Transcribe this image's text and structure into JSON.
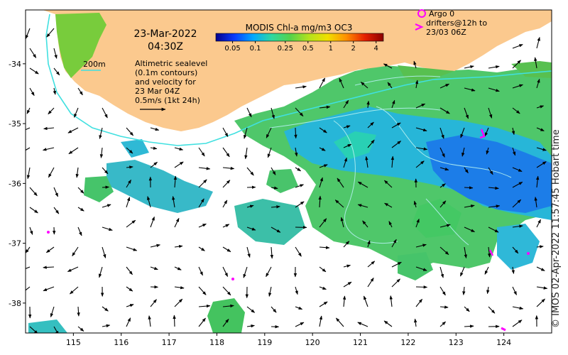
{
  "map": {
    "date": "23-Mar-2022",
    "time": "04:30Z",
    "isobath_label": "200m",
    "altimetry_note_lines": [
      "Altimetric sealevel",
      "(0.1m contours)",
      "and velocity for",
      "23 Mar 04Z",
      "0.5m/s (1kt 24h)"
    ],
    "colorbar": {
      "title": "MODIS Chl-a mg/m3 OC3",
      "tick_labels": [
        "0.05",
        "0.1",
        "0.25",
        "0.5",
        "1",
        "2",
        "4"
      ],
      "tick_values": [
        0.05,
        0.1,
        0.25,
        0.5,
        1,
        2,
        4
      ],
      "range": [
        0.03,
        5
      ],
      "scale": "log",
      "colors": [
        "#06008c",
        "#0a3cff",
        "#00a8ff",
        "#2fd8a0",
        "#55d24a",
        "#b4e21c",
        "#f0e000",
        "#ff9000",
        "#e62000",
        "#8c0000"
      ]
    },
    "legend": {
      "argo_label": "Argo 0",
      "drifter_lines": [
        "drifters@12h to",
        "23/03 06Z"
      ],
      "marker_color": "#ff00ff"
    },
    "x_ticks": [
      "115",
      "116",
      "117",
      "118",
      "119",
      "120",
      "121",
      "122",
      "123",
      "124"
    ],
    "x_tick_values": [
      115,
      116,
      117,
      118,
      119,
      120,
      121,
      122,
      123,
      124
    ],
    "y_ticks": [
      "-34",
      "-35",
      "-36",
      "-37",
      "-38"
    ],
    "y_tick_values": [
      -34,
      -35,
      -36,
      -37,
      -38
    ],
    "lon_range": [
      114.0,
      125.0
    ],
    "lat_range": [
      -38.5,
      -33.1
    ],
    "land_color": "#fbc98e",
    "isobath_color": "#40e0e0"
  },
  "credit": "© IMOS 02-Apr-2022 11:57:45 Hobart time"
}
